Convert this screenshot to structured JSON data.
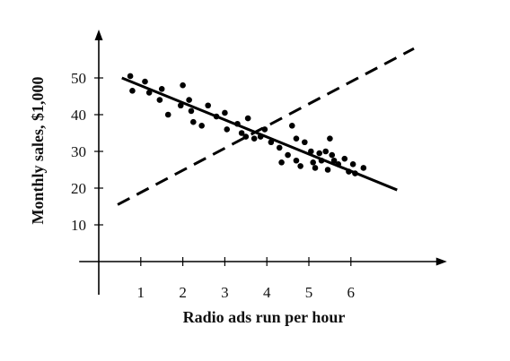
{
  "chart_data": {
    "type": "scatter",
    "title": "",
    "xlabel": "Radio ads run per hour",
    "ylabel": "Monthly sales, $1,000",
    "xlim": [
      -1,
      8.2
    ],
    "ylim": [
      -10,
      60
    ],
    "grid": false,
    "legend": "none",
    "x_ticks": [
      "1",
      "2",
      "3",
      "4",
      "5",
      "6"
    ],
    "y_ticks": [
      "10",
      "20",
      "30",
      "40",
      "50"
    ],
    "series": [
      {
        "kind": "points",
        "color": "#000000",
        "points": [
          [
            0.75,
            50.5
          ],
          [
            0.8,
            46.5
          ],
          [
            1.1,
            49
          ],
          [
            1.2,
            46
          ],
          [
            1.5,
            47
          ],
          [
            1.45,
            44
          ],
          [
            1.65,
            40
          ],
          [
            1.95,
            42.5
          ],
          [
            2.0,
            48
          ],
          [
            2.15,
            44
          ],
          [
            2.2,
            41
          ],
          [
            2.25,
            38
          ],
          [
            2.45,
            37
          ],
          [
            2.6,
            42.5
          ],
          [
            2.8,
            39.5
          ],
          [
            3.0,
            40.5
          ],
          [
            3.05,
            36
          ],
          [
            3.3,
            37.5
          ],
          [
            3.4,
            35
          ],
          [
            3.55,
            39
          ],
          [
            3.5,
            34
          ],
          [
            3.7,
            33.5
          ],
          [
            3.85,
            34
          ],
          [
            3.95,
            36
          ],
          [
            4.1,
            32.5
          ],
          [
            4.3,
            31
          ],
          [
            4.35,
            27
          ],
          [
            4.5,
            29
          ],
          [
            4.6,
            37
          ],
          [
            4.7,
            33.5
          ],
          [
            4.7,
            27.5
          ],
          [
            4.8,
            26
          ],
          [
            4.9,
            32.5
          ],
          [
            5.05,
            30
          ],
          [
            5.1,
            27
          ],
          [
            5.15,
            25.5
          ],
          [
            5.25,
            29.5
          ],
          [
            5.3,
            27.5
          ],
          [
            5.4,
            30
          ],
          [
            5.45,
            25
          ],
          [
            5.5,
            33.5
          ],
          [
            5.55,
            29
          ],
          [
            5.6,
            27.5
          ],
          [
            5.7,
            26.5
          ],
          [
            5.85,
            28
          ],
          [
            5.95,
            24.5
          ],
          [
            6.05,
            26.5
          ],
          [
            6.1,
            24
          ],
          [
            6.3,
            25.5
          ]
        ]
      },
      {
        "kind": "fit-line",
        "style": "solid",
        "color": "#000000",
        "points": [
          [
            0.55,
            50
          ],
          [
            7.1,
            19.5
          ]
        ]
      },
      {
        "kind": "reference-line",
        "style": "dashed",
        "color": "#000000",
        "points": [
          [
            0.45,
            15.5
          ],
          [
            7.5,
            58
          ]
        ]
      }
    ]
  }
}
